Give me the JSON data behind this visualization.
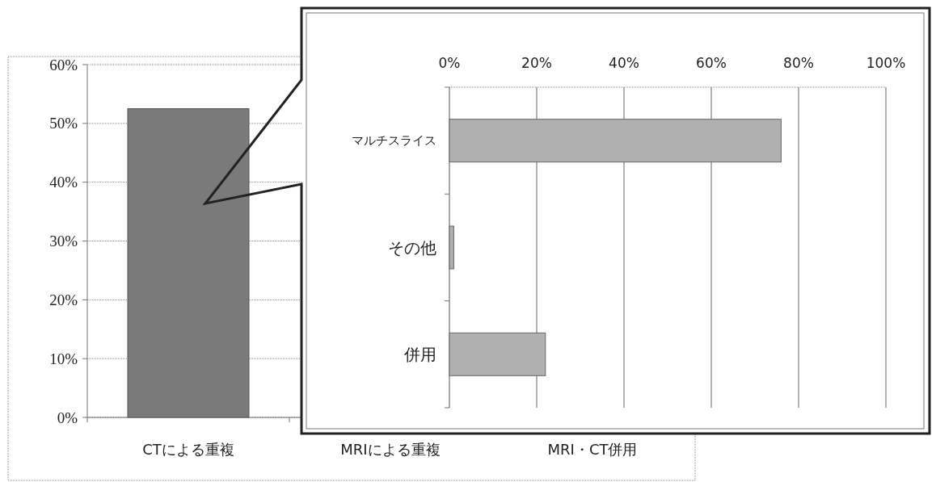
{
  "chart_data": [
    {
      "type": "bar",
      "categories": [
        "CTによる重複",
        "MRIによる重複",
        "MRI・CT併用"
      ],
      "values": [
        52.5,
        null,
        null
      ],
      "color": "#7a7a7a",
      "ylim": [
        0,
        60
      ],
      "yticks": [
        {
          "value": 0,
          "label": "0%"
        },
        {
          "value": 10,
          "label": "10%"
        },
        {
          "value": 20,
          "label": "20%"
        },
        {
          "value": 30,
          "label": "30%"
        },
        {
          "value": 40,
          "label": "40%"
        },
        {
          "value": 50,
          "label": "50%"
        },
        {
          "value": 60,
          "label": "60%"
        }
      ],
      "grid": "y"
    },
    {
      "type": "bar",
      "orientation": "horizontal",
      "categories": [
        "マルチスライス",
        "その他",
        "併用"
      ],
      "values": [
        76,
        1,
        22
      ],
      "color": "#b0b0b0",
      "xlim": [
        0,
        100
      ],
      "xticks": [
        {
          "value": 0,
          "label": "0%"
        },
        {
          "value": 20,
          "label": "20%"
        },
        {
          "value": 40,
          "label": "40%"
        },
        {
          "value": 60,
          "label": "60%"
        },
        {
          "value": 80,
          "label": "80%"
        },
        {
          "value": 100,
          "label": "100%"
        }
      ],
      "grid": "x"
    }
  ]
}
